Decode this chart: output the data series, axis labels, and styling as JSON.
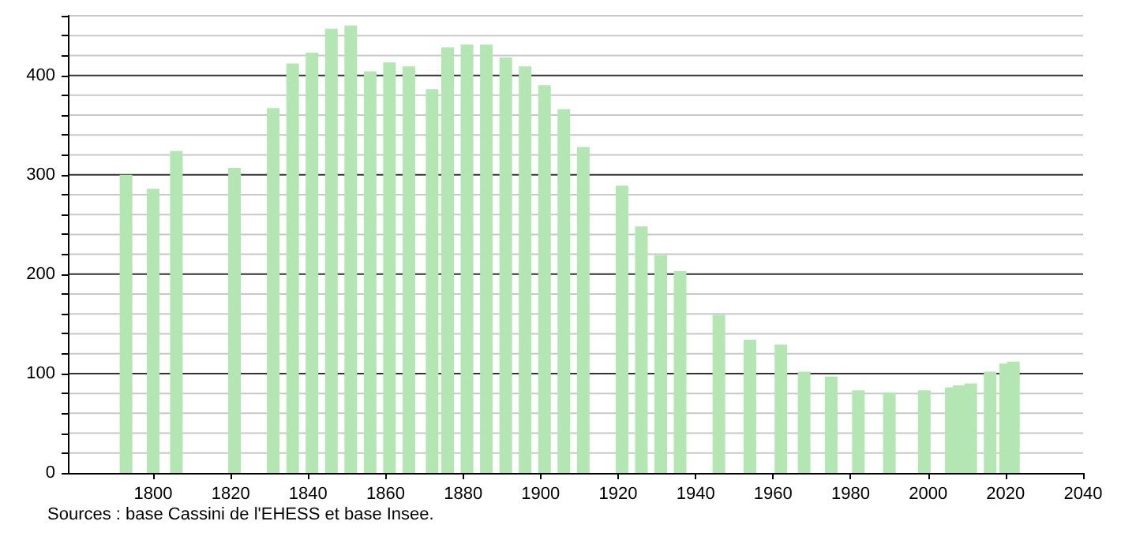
{
  "chart_data": {
    "type": "bar",
    "x": [
      1793,
      1800,
      1806,
      1821,
      1831,
      1836,
      1841,
      1846,
      1851,
      1856,
      1861,
      1866,
      1872,
      1876,
      1881,
      1886,
      1891,
      1896,
      1901,
      1906,
      1911,
      1921,
      1926,
      1931,
      1936,
      1946,
      1954,
      1962,
      1968,
      1975,
      1982,
      1990,
      1999,
      2006,
      2008,
      2011,
      2016,
      2020,
      2022
    ],
    "values": [
      300,
      286,
      324,
      307,
      367,
      412,
      423,
      447,
      450,
      404,
      413,
      409,
      386,
      428,
      431,
      431,
      418,
      409,
      390,
      366,
      328,
      289,
      248,
      219,
      203,
      159,
      134,
      129,
      102,
      97,
      83,
      81,
      83,
      86,
      88,
      90,
      102,
      110,
      112
    ],
    "color": "#b3e6b3",
    "xlim": [
      1778,
      2040
    ],
    "xticks": [
      1800,
      1820,
      1840,
      1860,
      1880,
      1900,
      1920,
      1940,
      1960,
      1980,
      2000,
      2020,
      2040
    ],
    "ylim": [
      0,
      460
    ],
    "yticks": [
      0,
      {
        "value": 20,
        "label": null
      },
      {
        "value": 40,
        "label": null
      },
      {
        "value": 60,
        "label": null
      },
      {
        "value": 80,
        "label": null
      },
      100,
      {
        "value": 120,
        "label": null
      },
      {
        "value": 140,
        "label": null
      },
      {
        "value": 160,
        "label": null
      },
      {
        "value": 180,
        "label": null
      },
      200,
      {
        "value": 220,
        "label": null
      },
      {
        "value": 240,
        "label": null
      },
      {
        "value": 260,
        "label": null
      },
      {
        "value": 280,
        "label": null
      },
      300,
      {
        "value": 320,
        "label": null
      },
      {
        "value": 340,
        "label": null
      },
      {
        "value": 360,
        "label": null
      },
      {
        "value": 380,
        "label": null
      },
      400,
      {
        "value": 420,
        "label": null
      },
      {
        "value": 440,
        "label": null
      },
      {
        "value": 460,
        "label": null
      }
    ],
    "grid": "y",
    "annotations": [
      "Sources : base Cassini de l'EHESS et base Insee."
    ]
  }
}
